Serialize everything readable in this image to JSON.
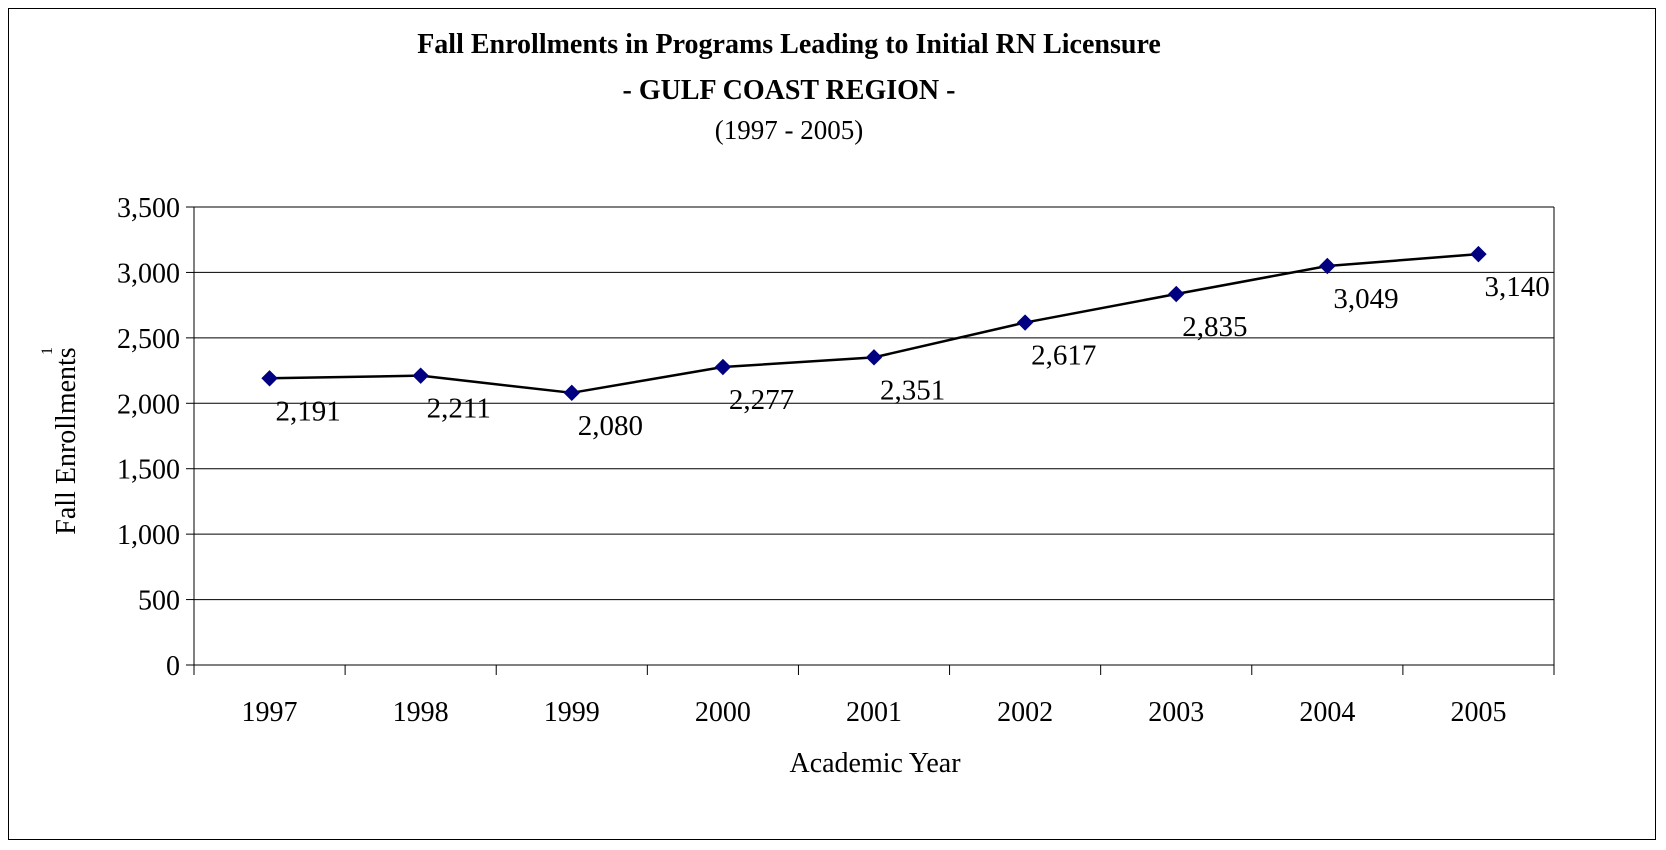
{
  "chart_data": {
    "type": "line",
    "title": "Fall Enrollments in Programs Leading to Initial RN Licensure",
    "subtitle": "- GULF COAST REGION -",
    "subtitle2": "(1997 - 2005)",
    "xlabel": "Academic Year",
    "ylabel": "Fall Enrollments",
    "ylabel_footnote": "1",
    "categories": [
      "1997",
      "1998",
      "1999",
      "2000",
      "2001",
      "2002",
      "2003",
      "2004",
      "2005"
    ],
    "series": [
      {
        "values": [
          2191,
          2211,
          2080,
          2277,
          2351,
          2617,
          2835,
          3049,
          3140
        ],
        "data_labels": [
          "2,191",
          "2,211",
          "2,080",
          "2,277",
          "2,351",
          "2,617",
          "2,835",
          "3,049",
          "3,140"
        ],
        "line_color": "#000000",
        "marker_color": "#000080",
        "marker": "diamond"
      }
    ],
    "ylim": [
      0,
      3500
    ],
    "yticks": [
      0,
      500,
      1000,
      1500,
      2000,
      2500,
      3000,
      3500
    ],
    "ytick_labels": [
      "0",
      "500",
      "1,000",
      "1,500",
      "2,000",
      "2,500",
      "3,000",
      "3,500"
    ],
    "grid": "horizontal",
    "legend": "none"
  }
}
